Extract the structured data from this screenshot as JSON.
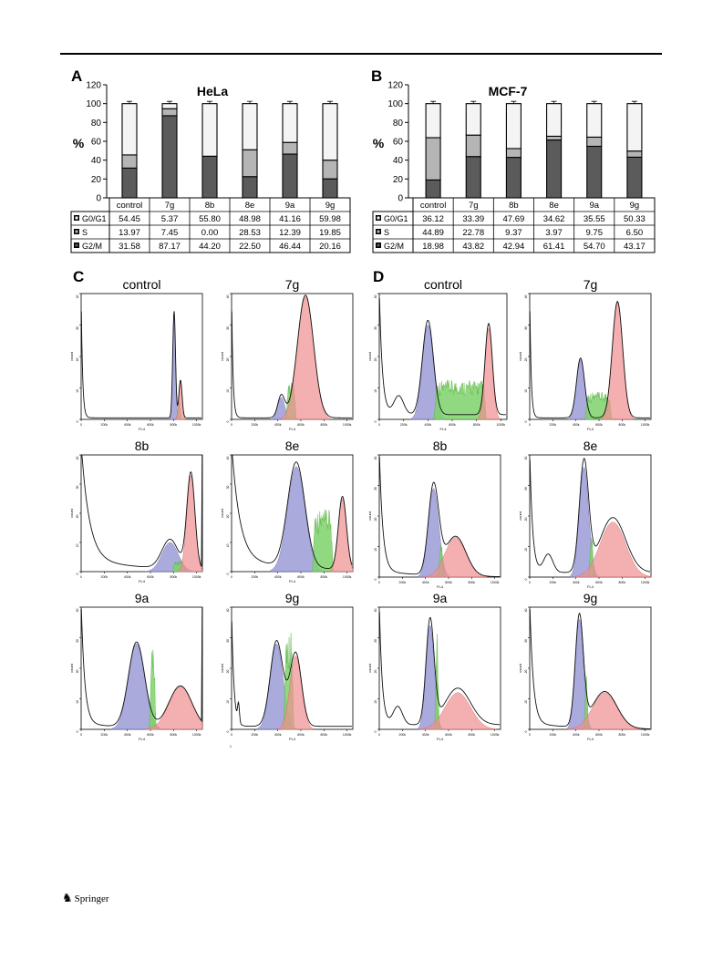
{
  "panels": {
    "A": {
      "letter": "A"
    },
    "B": {
      "letter": "B"
    },
    "C": {
      "letter": "C"
    },
    "D": {
      "letter": "D"
    }
  },
  "footer": {
    "publisher": "Springer",
    "stray_mark": "0"
  },
  "chart_data": [
    {
      "type": "bar",
      "stacked": true,
      "title": "HeLa",
      "ylabel": "%",
      "ylim": [
        0,
        120
      ],
      "yticks": [
        0,
        20,
        40,
        60,
        80,
        100,
        120
      ],
      "categories": [
        "control",
        "7g",
        "8b",
        "8e",
        "9a",
        "9g"
      ],
      "series": [
        {
          "name": "G2/M",
          "values": [
            31.58,
            87.17,
            44.2,
            22.5,
            46.44,
            20.16
          ],
          "display": [
            "31.58",
            "87.17",
            "44.20",
            "22.50",
            "46.44",
            "20.16"
          ],
          "color": "#5b5b5b"
        },
        {
          "name": "S",
          "values": [
            13.97,
            7.45,
            0.0,
            28.53,
            12.39,
            19.85
          ],
          "display": [
            "13.97",
            "7.45",
            "0.00",
            "28.53",
            "12.39",
            "19.85"
          ],
          "color": "#b5b5b5"
        },
        {
          "name": "G0/G1",
          "values": [
            54.45,
            5.37,
            55.8,
            48.98,
            41.16,
            59.98
          ],
          "display": [
            "54.45",
            "5.37",
            "55.80",
            "48.98",
            "41.16",
            "59.98"
          ],
          "color": "#f4f4f4"
        }
      ],
      "table_order": [
        "G0/G1",
        "S",
        "G2/M"
      ],
      "legend": "table below chart"
    },
    {
      "type": "bar",
      "stacked": true,
      "title": "MCF-7",
      "ylabel": "%",
      "ylim": [
        0,
        120
      ],
      "yticks": [
        0,
        20,
        40,
        60,
        80,
        100,
        120
      ],
      "categories": [
        "control",
        "7g",
        "8b",
        "8e",
        "9a",
        "9g"
      ],
      "series": [
        {
          "name": "G2/M",
          "values": [
            18.98,
            43.82,
            42.94,
            61.41,
            54.7,
            43.17
          ],
          "display": [
            "18.98",
            "43.82",
            "42.94",
            "61.41",
            "54.70",
            "43.17"
          ],
          "color": "#5b5b5b"
        },
        {
          "name": "S",
          "values": [
            44.89,
            22.78,
            9.37,
            3.97,
            9.75,
            6.5
          ],
          "display": [
            "44.89",
            "22.78",
            "9.37",
            "3.97",
            "9.75",
            "6.50"
          ],
          "color": "#b5b5b5"
        },
        {
          "name": "G0/G1",
          "values": [
            36.12,
            33.39,
            47.69,
            34.62,
            35.55,
            50.33
          ],
          "display": [
            "36.12",
            "33.39",
            "47.69",
            "34.62",
            "35.55",
            "50.33"
          ],
          "color": "#f4f4f4"
        }
      ],
      "table_order": [
        "G0/G1",
        "S",
        "G2/M"
      ],
      "legend": "table below chart"
    },
    {
      "type": "area",
      "group": "C (HeLa flow cytometry)",
      "xlabel": "FL4",
      "ylabel": "count",
      "xticks": [
        "0",
        "200k",
        "400k",
        "600k",
        "800k",
        "1000k"
      ],
      "yticks": [
        "0",
        "10",
        "20",
        "30",
        "40"
      ],
      "components": {
        "G0/G1": "#8d8fd0",
        "S": "#7ed26a",
        "G2/M": "#f08f8f"
      },
      "plots": [
        {
          "title": "control",
          "g1": [
            805,
            12,
            34
          ],
          "s": [
            830,
            870,
            6
          ],
          "g2": [
            860,
            14,
            12
          ],
          "debris": "sharp",
          "top_pinned": false
        },
        {
          "title": "7g",
          "g1": [
            430,
            30,
            7
          ],
          "s": [
            470,
            560,
            10
          ],
          "g2": [
            640,
            70,
            39
          ],
          "debris": "sharp",
          "top_pinned": false
        },
        {
          "title": "8b",
          "g1": [
            770,
            70,
            10
          ],
          "s": [
            790,
            900,
            3
          ],
          "g2": [
            950,
            35,
            33
          ],
          "debris": "slow",
          "top_pinned": true
        },
        {
          "title": "8e",
          "g1": [
            560,
            75,
            36
          ],
          "s": [
            700,
            880,
            17
          ],
          "g2": [
            960,
            35,
            25
          ],
          "debris": "slow",
          "top_pinned": false
        },
        {
          "title": "9a",
          "g1": [
            480,
            70,
            28
          ],
          "s": [
            590,
            650,
            24
          ],
          "g2": [
            860,
            100,
            14
          ],
          "debris": "fast",
          "top_pinned": true
        },
        {
          "title": "9g",
          "g1": [
            390,
            55,
            28
          ],
          "s": [
            450,
            540,
            26
          ],
          "g2": [
            555,
            50,
            24
          ],
          "debris": "jag",
          "top_pinned": false
        }
      ]
    },
    {
      "type": "area",
      "group": "D (MCF-7 flow cytometry)",
      "xlabel": "FL4",
      "ylabel": "count",
      "xticks": [
        "0",
        "200k",
        "400k",
        "600k",
        "800k",
        "1000k"
      ],
      "yticks": [
        "0",
        "10",
        "20",
        "30",
        "40"
      ],
      "components": {
        "G0/G1": "#8d8fd0",
        "S": "#7ed26a",
        "G2/M": "#f08f8f"
      },
      "plots": [
        {
          "title": "control",
          "g1": [
            400,
            45,
            30
          ],
          "s": [
            450,
            880,
            10
          ],
          "g2": [
            900,
            30,
            29
          ],
          "debris": "bump",
          "top_pinned": false
        },
        {
          "title": "7g",
          "g1": [
            440,
            35,
            19
          ],
          "s": [
            480,
            710,
            7
          ],
          "g2": [
            760,
            45,
            37
          ],
          "debris": "sharp",
          "top_pinned": false
        },
        {
          "title": "8b",
          "g1": [
            470,
            45,
            29
          ],
          "s": [
            510,
            560,
            10
          ],
          "g2": [
            660,
            90,
            13
          ],
          "debris": "fast",
          "top_pinned": false
        },
        {
          "title": "8e",
          "g1": [
            470,
            40,
            36
          ],
          "s": [
            510,
            560,
            12
          ],
          "g2": [
            720,
            110,
            18
          ],
          "debris": "bump",
          "top_pinned": false
        },
        {
          "title": "9a",
          "g1": [
            440,
            35,
            34
          ],
          "s": [
            480,
            520,
            32
          ],
          "g2": [
            680,
            110,
            12
          ],
          "debris": "bump",
          "top_pinned": false
        },
        {
          "title": "9g",
          "g1": [
            430,
            35,
            36
          ],
          "s": [
            470,
            510,
            18
          ],
          "g2": [
            650,
            105,
            12
          ],
          "debris": "fast",
          "top_pinned": false
        }
      ]
    }
  ]
}
